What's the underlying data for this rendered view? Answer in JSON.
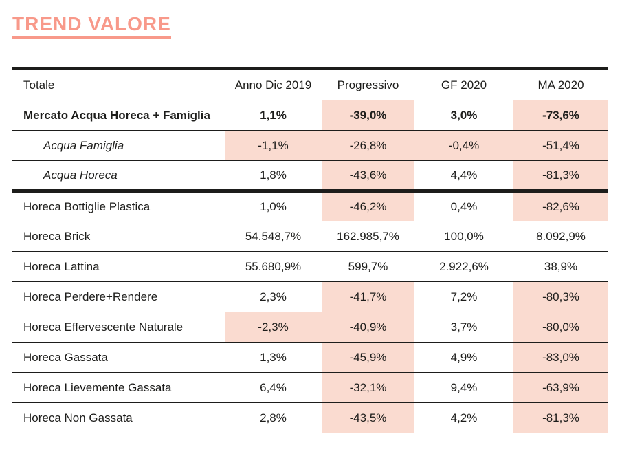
{
  "title": "TREND VALORE",
  "colors": {
    "accent_salmon": "#f8998a",
    "highlight_pink": "#fadbd0",
    "text_black": "#1d1d1b"
  },
  "chart_data": {
    "type": "table",
    "title": "TREND VALORE",
    "columns": [
      "Totale",
      "Anno Dic 2019",
      "Progressivo",
      "GF 2020",
      "MA 2020"
    ],
    "rows": [
      {
        "label": "Mercato Acqua Horeca + Famiglia",
        "style": "bold",
        "thick_border_bottom": false,
        "values": [
          {
            "text": "1,1%",
            "highlight": false
          },
          {
            "text": "-39,0%",
            "highlight": true
          },
          {
            "text": "3,0%",
            "highlight": false
          },
          {
            "text": "-73,6%",
            "highlight": true
          }
        ]
      },
      {
        "label": "Acqua Famiglia",
        "style": "italic-indent",
        "thick_border_bottom": false,
        "values": [
          {
            "text": "-1,1%",
            "highlight": true
          },
          {
            "text": "-26,8%",
            "highlight": true
          },
          {
            "text": "-0,4%",
            "highlight": true
          },
          {
            "text": "-51,4%",
            "highlight": true
          }
        ]
      },
      {
        "label": "Acqua Horeca",
        "style": "italic-indent",
        "thick_border_bottom": true,
        "values": [
          {
            "text": "1,8%",
            "highlight": false
          },
          {
            "text": "-43,6%",
            "highlight": true
          },
          {
            "text": "4,4%",
            "highlight": false
          },
          {
            "text": "-81,3%",
            "highlight": true
          }
        ]
      },
      {
        "label": "Horeca Bottiglie Plastica",
        "style": "normal",
        "thick_border_bottom": false,
        "values": [
          {
            "text": "1,0%",
            "highlight": false
          },
          {
            "text": "-46,2%",
            "highlight": true
          },
          {
            "text": "0,4%",
            "highlight": false
          },
          {
            "text": "-82,6%",
            "highlight": true
          }
        ]
      },
      {
        "label": "Horeca Brick",
        "style": "normal",
        "thick_border_bottom": false,
        "values": [
          {
            "text": "54.548,7%",
            "highlight": false
          },
          {
            "text": "162.985,7%",
            "highlight": false
          },
          {
            "text": "100,0%",
            "highlight": false
          },
          {
            "text": "8.092,9%",
            "highlight": false
          }
        ]
      },
      {
        "label": "Horeca Lattina",
        "style": "normal",
        "thick_border_bottom": false,
        "values": [
          {
            "text": "55.680,9%",
            "highlight": false
          },
          {
            "text": "599,7%",
            "highlight": false
          },
          {
            "text": "2.922,6%",
            "highlight": false
          },
          {
            "text": "38,9%",
            "highlight": false
          }
        ]
      },
      {
        "label": "Horeca Perdere+Rendere",
        "style": "normal",
        "thick_border_bottom": false,
        "values": [
          {
            "text": "2,3%",
            "highlight": false
          },
          {
            "text": "-41,7%",
            "highlight": true
          },
          {
            "text": "7,2%",
            "highlight": false
          },
          {
            "text": "-80,3%",
            "highlight": true
          }
        ]
      },
      {
        "label": "Horeca Effervescente Naturale",
        "style": "normal",
        "thick_border_bottom": false,
        "values": [
          {
            "text": "-2,3%",
            "highlight": true
          },
          {
            "text": "-40,9%",
            "highlight": true
          },
          {
            "text": "3,7%",
            "highlight": false
          },
          {
            "text": "-80,0%",
            "highlight": true
          }
        ]
      },
      {
        "label": "Horeca Gassata",
        "style": "normal",
        "thick_border_bottom": false,
        "values": [
          {
            "text": "1,3%",
            "highlight": false
          },
          {
            "text": "-45,9%",
            "highlight": true
          },
          {
            "text": "4,9%",
            "highlight": false
          },
          {
            "text": "-83,0%",
            "highlight": true
          }
        ]
      },
      {
        "label": "Horeca Lievemente Gassata",
        "style": "normal",
        "thick_border_bottom": false,
        "values": [
          {
            "text": "6,4%",
            "highlight": false
          },
          {
            "text": "-32,1%",
            "highlight": true
          },
          {
            "text": "9,4%",
            "highlight": false
          },
          {
            "text": "-63,9%",
            "highlight": true
          }
        ]
      },
      {
        "label": "Horeca Non Gassata",
        "style": "normal",
        "thick_border_bottom": false,
        "values": [
          {
            "text": "2,8%",
            "highlight": false
          },
          {
            "text": "-43,5%",
            "highlight": true
          },
          {
            "text": "4,2%",
            "highlight": false
          },
          {
            "text": "-81,3%",
            "highlight": true
          }
        ]
      }
    ]
  }
}
